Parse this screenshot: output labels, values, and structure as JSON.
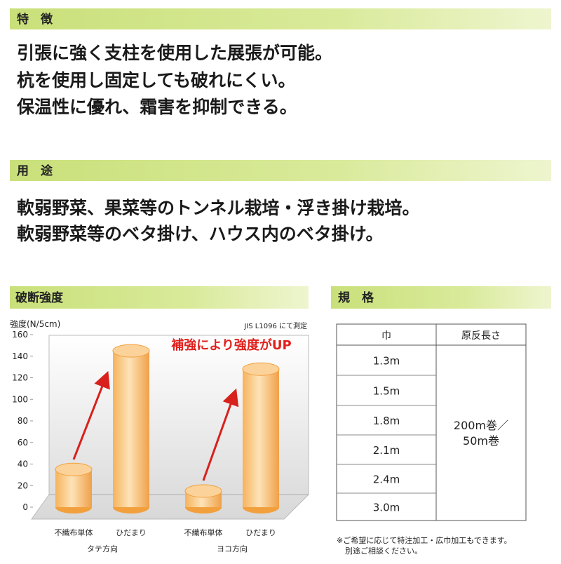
{
  "features": {
    "title": "特　徴",
    "lines": [
      "引張に強く支柱を使用した展張が可能。",
      "杭を使用し固定しても破れにくい。",
      "保温性に優れ、霜害を抑制できる。"
    ]
  },
  "uses": {
    "title": "用　途",
    "lines": [
      "軟弱野菜、果菜等のトンネル栽培・浮き掛け栽培。",
      "軟弱野菜等のベタ掛け、ハウス内のベタ掛け。"
    ]
  },
  "chart_data": {
    "type": "bar",
    "title": "破断強度",
    "y_label": "強度(N/5cm)",
    "note": "JIS L1096 にて測定",
    "annotation": "補強により強度がUP",
    "categories": [
      "不織布単体",
      "ひだまり",
      "不織布単体",
      "ひだまり"
    ],
    "groups": [
      "タテ方向",
      "ヨコ方向"
    ],
    "values": [
      35,
      145,
      15,
      128
    ],
    "color": "#f2a03d",
    "ylim": [
      0,
      160
    ],
    "yticks": [
      0,
      20,
      40,
      60,
      80,
      100,
      120,
      140,
      160
    ]
  },
  "specs": {
    "title": "規　格",
    "header": [
      "巾",
      "原反長さ"
    ],
    "widths": [
      "1.3m",
      "1.5m",
      "1.8m",
      "2.1m",
      "2.4m",
      "3.0m"
    ],
    "length": [
      "200m巻／",
      "50m巻"
    ],
    "footnote": [
      "※ご希望に応じて特注加工・広巾加工もできます。",
      "別途ご相談ください。"
    ]
  }
}
